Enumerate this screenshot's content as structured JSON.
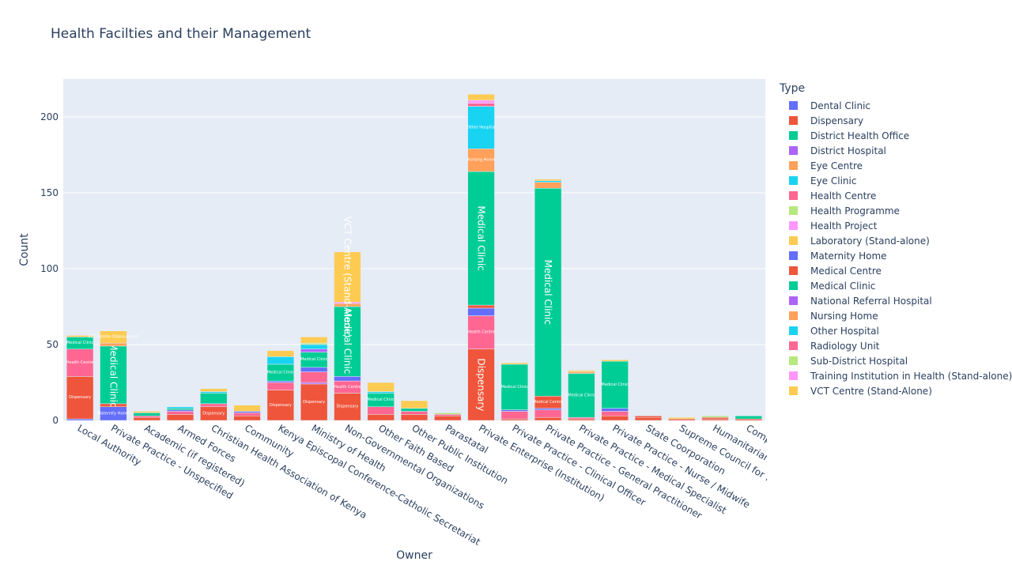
{
  "chart_data": {
    "type": "bar",
    "barmode": "stack",
    "title": "Health Facilties and their Management",
    "xlabel": "Owner",
    "ylabel": "Count",
    "ylim": [
      0,
      225
    ],
    "yticks": [
      0,
      50,
      100,
      150,
      200
    ],
    "grid": true,
    "legend_title": "Type",
    "legend_position": "right",
    "categories": [
      "Local Authority",
      "Private Practice - Unspecified",
      "Academic (if registered)",
      "Armed Forces",
      "Christian Health Association of Kenya",
      "Community",
      "Kenya Episcopal Conference-Catholic Secretariat",
      "Ministry of Health",
      "Non-Governmental Organizations",
      "Other Faith Based",
      "Other Public Institution",
      "Parastatal",
      "Private Enterprise (Institution)",
      "Private Practice - Clinical Officer",
      "Private Practice - General Practitioner",
      "Private Practice - Medical Specialist",
      "Private Practice - Nurse / Midwife",
      "State Coorporation",
      "Supreme Council for Kenya Muslims",
      "Humanitarian Agencies",
      "Company Medical Service"
    ],
    "series": [
      {
        "name": "Dental Clinic",
        "color": "#636efa",
        "values": [
          1,
          0,
          0,
          0,
          0,
          0,
          0,
          0,
          0,
          0,
          0,
          0,
          0,
          0,
          0,
          0,
          0,
          0,
          0,
          0,
          0
        ]
      },
      {
        "name": "Dispensary",
        "color": "#EF553B",
        "values": [
          28,
          0,
          2,
          4,
          9,
          3,
          20,
          24,
          18,
          4,
          4,
          3,
          47,
          1,
          2,
          1,
          3,
          2,
          1,
          1,
          1
        ]
      },
      {
        "name": "District Health Office",
        "color": "#00cc96",
        "values": [
          0,
          0,
          0,
          0,
          0,
          0,
          0,
          0,
          0,
          0,
          0,
          0,
          0,
          0,
          0,
          0,
          0,
          0,
          0,
          0,
          0
        ]
      },
      {
        "name": "District Hospital",
        "color": "#ab63fa",
        "values": [
          0,
          0,
          0,
          0,
          0,
          0,
          0,
          1,
          0,
          0,
          0,
          0,
          0,
          0,
          0,
          0,
          0,
          0,
          0,
          0,
          0
        ]
      },
      {
        "name": "Eye Centre",
        "color": "#FFA15A",
        "values": [
          0,
          0,
          0,
          0,
          0,
          0,
          0,
          0,
          0,
          0,
          0,
          0,
          0,
          0,
          0,
          0,
          0,
          0,
          0,
          0,
          0
        ]
      },
      {
        "name": "Eye Clinic",
        "color": "#19d3f3",
        "values": [
          0,
          0,
          0,
          0,
          0,
          0,
          0,
          0,
          0,
          0,
          0,
          0,
          0,
          0,
          0,
          0,
          0,
          0,
          0,
          0,
          0
        ]
      },
      {
        "name": "Health Centre",
        "color": "#FF6692",
        "values": [
          18,
          0,
          1,
          2,
          2,
          2,
          5,
          7,
          8,
          5,
          2,
          1,
          22,
          5,
          5,
          1,
          3,
          0,
          0,
          0,
          0
        ]
      },
      {
        "name": "Health Programme",
        "color": "#B6E880",
        "values": [
          0,
          0,
          0,
          0,
          0,
          0,
          0,
          0,
          0,
          0,
          0,
          0,
          0,
          0,
          0,
          0,
          0,
          0,
          0,
          0,
          0
        ]
      },
      {
        "name": "Health Project",
        "color": "#FF97FF",
        "values": [
          0,
          0,
          0,
          0,
          0,
          0,
          0,
          0,
          0,
          0,
          0,
          0,
          0,
          0,
          0,
          0,
          0,
          0,
          0,
          0,
          0
        ]
      },
      {
        "name": "Laboratory (Stand-alone)",
        "color": "#FECB52",
        "values": [
          0,
          0,
          0,
          0,
          0,
          0,
          0,
          0,
          0,
          0,
          0,
          0,
          0,
          0,
          0,
          0,
          0,
          0,
          0,
          0,
          0
        ]
      },
      {
        "name": "Maternity Home",
        "color": "#636efa",
        "values": [
          0,
          9,
          0,
          1,
          0,
          1,
          1,
          3,
          3,
          0,
          0,
          0,
          5,
          1,
          1,
          0,
          2,
          0,
          0,
          0,
          0
        ]
      },
      {
        "name": "Medical Centre",
        "color": "#EF553B",
        "values": [
          0,
          2,
          0,
          0,
          0,
          0,
          0,
          0,
          0,
          0,
          0,
          0,
          2,
          0,
          8,
          0,
          0,
          1,
          0,
          1,
          0
        ]
      },
      {
        "name": "Medical Clinic",
        "color": "#00cc96",
        "values": [
          8,
          38,
          2,
          1,
          7,
          0,
          11,
          10,
          46,
          9,
          2,
          0,
          88,
          30,
          137,
          29,
          31,
          0,
          0,
          0,
          2
        ]
      },
      {
        "name": "National Referral Hospital",
        "color": "#ab63fa",
        "values": [
          0,
          0,
          0,
          0,
          0,
          0,
          0,
          2,
          0,
          0,
          0,
          0,
          0,
          0,
          0,
          0,
          0,
          0,
          0,
          0,
          0
        ]
      },
      {
        "name": "Nursing Home",
        "color": "#FFA15A",
        "values": [
          0,
          2,
          0,
          0,
          0,
          0,
          0,
          0,
          2,
          0,
          0,
          0,
          15,
          0,
          4,
          1,
          0,
          0,
          0,
          0,
          0
        ]
      },
      {
        "name": "Other Hospital",
        "color": "#19d3f3",
        "values": [
          0,
          0,
          0,
          1,
          1,
          0,
          5,
          3,
          0,
          1,
          0,
          0,
          28,
          0,
          1,
          0,
          0,
          0,
          0,
          0,
          0
        ]
      },
      {
        "name": "Radiology Unit",
        "color": "#FF6692",
        "values": [
          0,
          0,
          0,
          0,
          0,
          0,
          0,
          0,
          0,
          0,
          0,
          0,
          2,
          0,
          0,
          0,
          0,
          0,
          0,
          0,
          0
        ]
      },
      {
        "name": "Sub-District Hospital",
        "color": "#B6E880",
        "values": [
          0,
          0,
          0,
          0,
          0,
          0,
          0,
          1,
          0,
          0,
          0,
          1,
          0,
          0,
          0,
          0,
          0,
          0,
          0,
          1,
          0
        ]
      },
      {
        "name": "Training Institution in Health (Stand-alone)",
        "color": "#FF97FF",
        "values": [
          0,
          0,
          0,
          0,
          0,
          0,
          0,
          0,
          1,
          0,
          0,
          0,
          2,
          0,
          0,
          0,
          0,
          0,
          0,
          0,
          0
        ]
      },
      {
        "name": "VCT Centre (Stand-Alone)",
        "color": "#FECB52",
        "values": [
          1,
          8,
          1,
          0,
          2,
          4,
          4,
          4,
          33,
          6,
          5,
          0,
          4,
          1,
          1,
          1,
          1,
          0,
          1,
          0,
          0
        ]
      }
    ]
  }
}
